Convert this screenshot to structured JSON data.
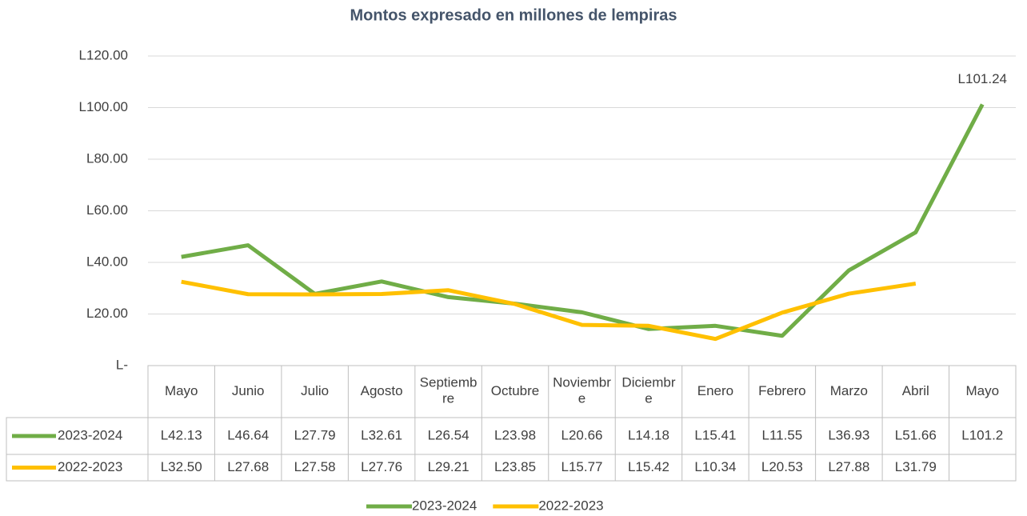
{
  "chart_data": {
    "type": "line",
    "title": "Montos expresado en millones de lempiras",
    "categories": [
      "Mayo",
      "Junio",
      "Julio",
      "Agosto",
      "Septiembre",
      "Octubre",
      "Noviembre",
      "Diciembre",
      "Enero",
      "Febrero",
      "Marzo",
      "Abril",
      "Mayo"
    ],
    "series": [
      {
        "name": "2023-2024",
        "color": "#70ad47",
        "values": [
          42.13,
          46.64,
          27.79,
          32.61,
          26.54,
          23.98,
          20.66,
          14.18,
          15.41,
          11.55,
          36.93,
          51.66,
          101.24
        ],
        "value_labels": [
          "L42.13",
          "L46.64",
          "L27.79",
          "L32.61",
          "L26.54",
          "L23.98",
          "L20.66",
          "L14.18",
          "L15.41",
          "L11.55",
          "L36.93",
          "L51.66",
          "L101.2"
        ],
        "end_label": "L101.24"
      },
      {
        "name": "2022-2023",
        "color": "#ffc000",
        "values": [
          32.5,
          27.68,
          27.58,
          27.76,
          29.21,
          23.85,
          15.77,
          15.42,
          10.34,
          20.53,
          27.88,
          31.79,
          null
        ],
        "value_labels": [
          "L32.50",
          "L27.68",
          "L27.58",
          "L27.76",
          "L29.21",
          "L23.85",
          "L15.77",
          "L15.42",
          "L10.34",
          "L20.53",
          "L27.88",
          "L31.79",
          null
        ]
      }
    ],
    "ylim": [
      0,
      120
    ],
    "yticks": [
      {
        "value": 0,
        "label": "L-"
      },
      {
        "value": 20,
        "label": "L20.00"
      },
      {
        "value": 40,
        "label": "L40.00"
      },
      {
        "value": 60,
        "label": "L60.00"
      },
      {
        "value": 80,
        "label": "L80.00"
      },
      {
        "value": 100,
        "label": "L100.00"
      },
      {
        "value": 120,
        "label": "L120.00"
      }
    ],
    "grid": true,
    "legend": "bottom"
  }
}
